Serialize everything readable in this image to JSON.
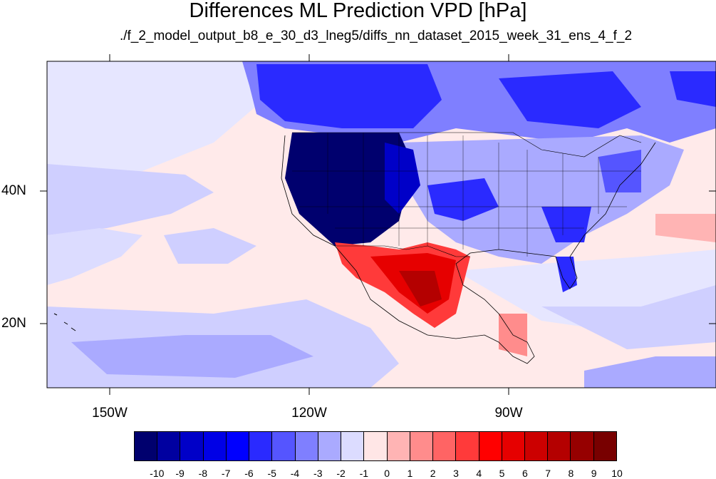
{
  "title": "Differences ML Prediction VPD [hPa]",
  "subtitle": "./f_2_model_output_b8_e_30_d3_lneg5/diffs_nn_dataset_2015_week_31_ens_4_f_2",
  "lat_labels": [
    "40N",
    "20N"
  ],
  "lon_labels": [
    "150W",
    "120W",
    "90W"
  ],
  "colorbar": {
    "labels": [
      "-10",
      "-9",
      "-8",
      "-7",
      "-6",
      "-5",
      "-4",
      "-3",
      "-2",
      "-1",
      "0",
      "1",
      "2",
      "3",
      "4",
      "5",
      "6",
      "7",
      "8",
      "9",
      "10"
    ],
    "colors": [
      "#00006e",
      "#0000a0",
      "#0000c8",
      "#0000e6",
      "#0000ff",
      "#2a2aff",
      "#5555ff",
      "#7f7fff",
      "#aaaaff",
      "#dcdcff",
      "#ffe6e6",
      "#ffb4b4",
      "#ff8c8c",
      "#ff6464",
      "#ff3a3a",
      "#ff0000",
      "#e60000",
      "#cc0000",
      "#b40000",
      "#960000",
      "#780000"
    ]
  },
  "map": {
    "projection": "cylindrical equidistant",
    "lon_range": [
      "-160",
      "-60"
    ],
    "lat_range": [
      "10",
      "59"
    ],
    "background_color": "#ffecec"
  }
}
